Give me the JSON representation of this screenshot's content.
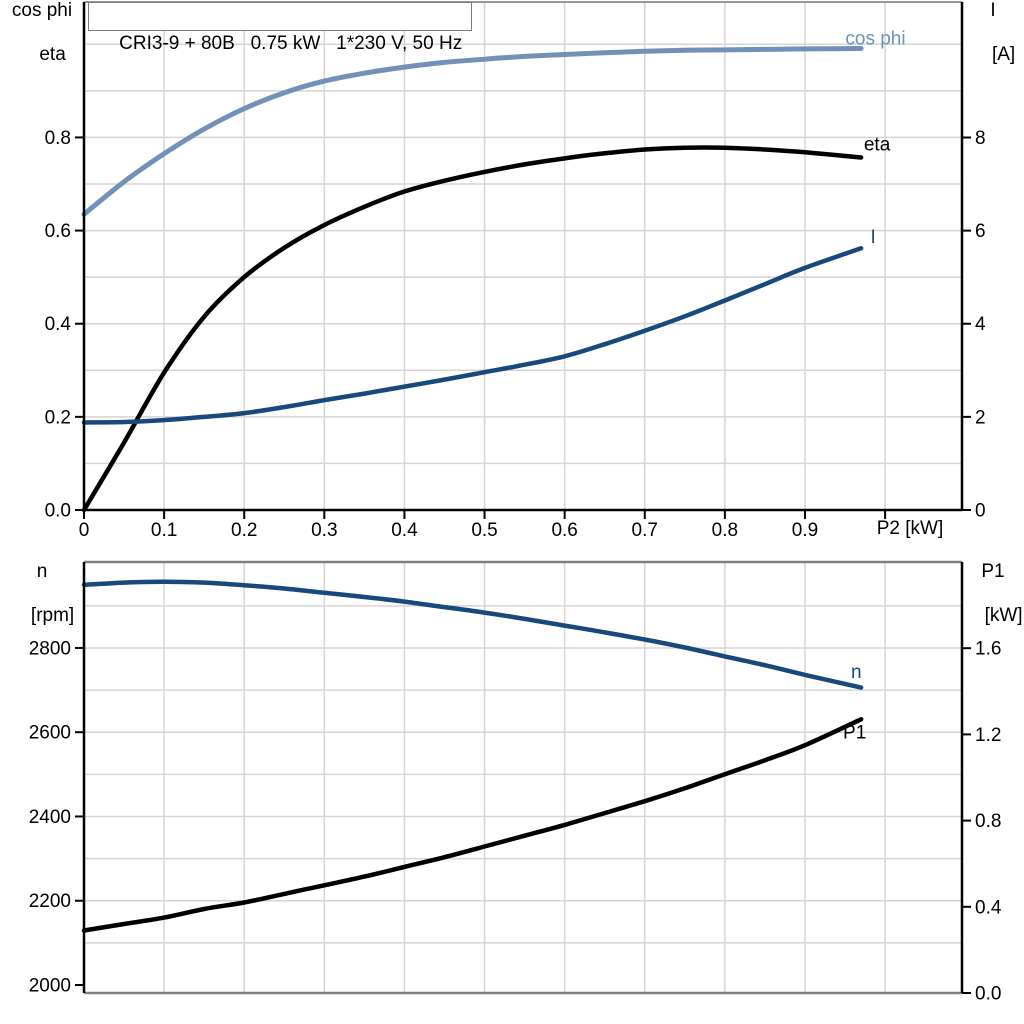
{
  "chart_data": [
    {
      "id": "motor",
      "type": "line",
      "title": "CRI3-9 + 80B   0.75 kW   1*230 V, 50 Hz",
      "x_axis": {
        "label": "P2 [kW]",
        "min": 0,
        "max": 1.096,
        "grid_step": 0.1,
        "ticks": [
          0,
          0.1,
          0.2,
          0.3,
          0.4,
          0.5,
          0.6,
          0.7,
          0.8,
          0.9,
          1.0
        ],
        "tick_labels": [
          "0",
          "0.1",
          "0.2",
          "0.3",
          "0.4",
          "0.5",
          "0.6",
          "0.7",
          "0.8",
          "0.9",
          ""
        ]
      },
      "left_axis": {
        "label_line1": "cos phi",
        "label_line2": "eta",
        "min": 0,
        "max": 1.0908,
        "grid_step": 0.1,
        "ticks": [
          0,
          0.2,
          0.4,
          0.6,
          0.8
        ],
        "tick_labels": [
          "0.0",
          "0.2",
          "0.4",
          "0.6",
          "0.8"
        ]
      },
      "right_axis": {
        "label_line1": "I",
        "label_line2": "[A]",
        "min": 0,
        "max": 10.91,
        "ticks": [
          0,
          2,
          4,
          6,
          8
        ],
        "tick_labels": [
          "0",
          "2",
          "4",
          "6",
          "8"
        ]
      },
      "x": [
        0,
        0.05,
        0.1,
        0.15,
        0.2,
        0.25,
        0.3,
        0.35,
        0.4,
        0.45,
        0.5,
        0.55,
        0.6,
        0.65,
        0.7,
        0.75,
        0.8,
        0.85,
        0.9,
        0.97
      ],
      "series": [
        {
          "id": "cos-phi",
          "name": "cos phi",
          "axis": "left",
          "color": "#7191b8",
          "width": 5,
          "label_x": 0.988,
          "label_y": 1.0,
          "values": [
            0.635,
            0.705,
            0.765,
            0.818,
            0.862,
            0.896,
            0.921,
            0.938,
            0.951,
            0.961,
            0.968,
            0.974,
            0.978,
            0.982,
            0.985,
            0.987,
            0.988,
            0.989,
            0.99,
            0.991
          ]
        },
        {
          "id": "eta",
          "name": "eta",
          "axis": "left",
          "color": "#000000",
          "width": 4.5,
          "label_x": 0.99,
          "label_y": 0.772,
          "values": [
            0,
            0.145,
            0.295,
            0.415,
            0.5,
            0.563,
            0.612,
            0.651,
            0.684,
            0.707,
            0.726,
            0.742,
            0.755,
            0.766,
            0.774,
            0.778,
            0.778,
            0.774,
            0.768,
            0.757
          ]
        },
        {
          "id": "current",
          "name": "I",
          "axis": "right",
          "color": "#17497d",
          "width": 4.5,
          "label_x": 0.985,
          "label_y": 5.73,
          "values": [
            1.88,
            1.89,
            1.93,
            2.0,
            2.08,
            2.21,
            2.36,
            2.5,
            2.65,
            2.8,
            2.96,
            3.12,
            3.3,
            3.56,
            3.85,
            4.16,
            4.5,
            4.85,
            5.2,
            5.62
          ]
        }
      ]
    },
    {
      "id": "speed-power",
      "type": "line",
      "title": "",
      "x_axis": {
        "label": "",
        "min": 0,
        "max": 1.096,
        "grid_step": 0.1,
        "ticks": [],
        "tick_labels": []
      },
      "left_axis": {
        "label_line1": "n",
        "label_line2": "[rpm]",
        "min": 1981,
        "max": 3004,
        "grid_step": 100,
        "ticks": [
          2000,
          2200,
          2400,
          2600,
          2800
        ],
        "tick_labels": [
          "2000",
          "2200",
          "2400",
          "2600",
          "2800"
        ]
      },
      "right_axis": {
        "label_line1": "P1",
        "label_line2": "[kW]",
        "min": 0,
        "max": 2.0,
        "ticks": [
          0,
          0.4,
          0.8,
          1.2,
          1.6
        ],
        "tick_labels": [
          "0.0",
          "0.4",
          "0.8",
          "1.2",
          "1.6"
        ]
      },
      "x": [
        0,
        0.05,
        0.1,
        0.15,
        0.2,
        0.25,
        0.3,
        0.35,
        0.4,
        0.45,
        0.5,
        0.55,
        0.6,
        0.65,
        0.7,
        0.75,
        0.8,
        0.85,
        0.9,
        0.97
      ],
      "series": [
        {
          "id": "speed",
          "name": "n",
          "axis": "left",
          "color": "#17497d",
          "width": 4.5,
          "label_x": 0.964,
          "label_y": 2729,
          "values": [
            2950,
            2955,
            2957,
            2955,
            2949,
            2941,
            2931,
            2921,
            2910,
            2897,
            2884,
            2869,
            2853,
            2837,
            2820,
            2801,
            2780,
            2759,
            2736,
            2706
          ]
        },
        {
          "id": "p1",
          "name": "P1",
          "axis": "right",
          "color": "#000000",
          "width": 4.5,
          "label_x": 0.962,
          "label_y": 1.18,
          "values": [
            0.29,
            0.32,
            0.35,
            0.39,
            0.42,
            0.46,
            0.5,
            0.54,
            0.585,
            0.63,
            0.68,
            0.73,
            0.78,
            0.835,
            0.89,
            0.95,
            1.015,
            1.08,
            1.15,
            1.27
          ]
        }
      ]
    }
  ],
  "style": {
    "grid_color": "#d5d5d5",
    "axis_color": "#000000",
    "border_color": "#808080",
    "accent_light_blue": "#7191b8",
    "accent_dark_blue": "#17497d"
  }
}
